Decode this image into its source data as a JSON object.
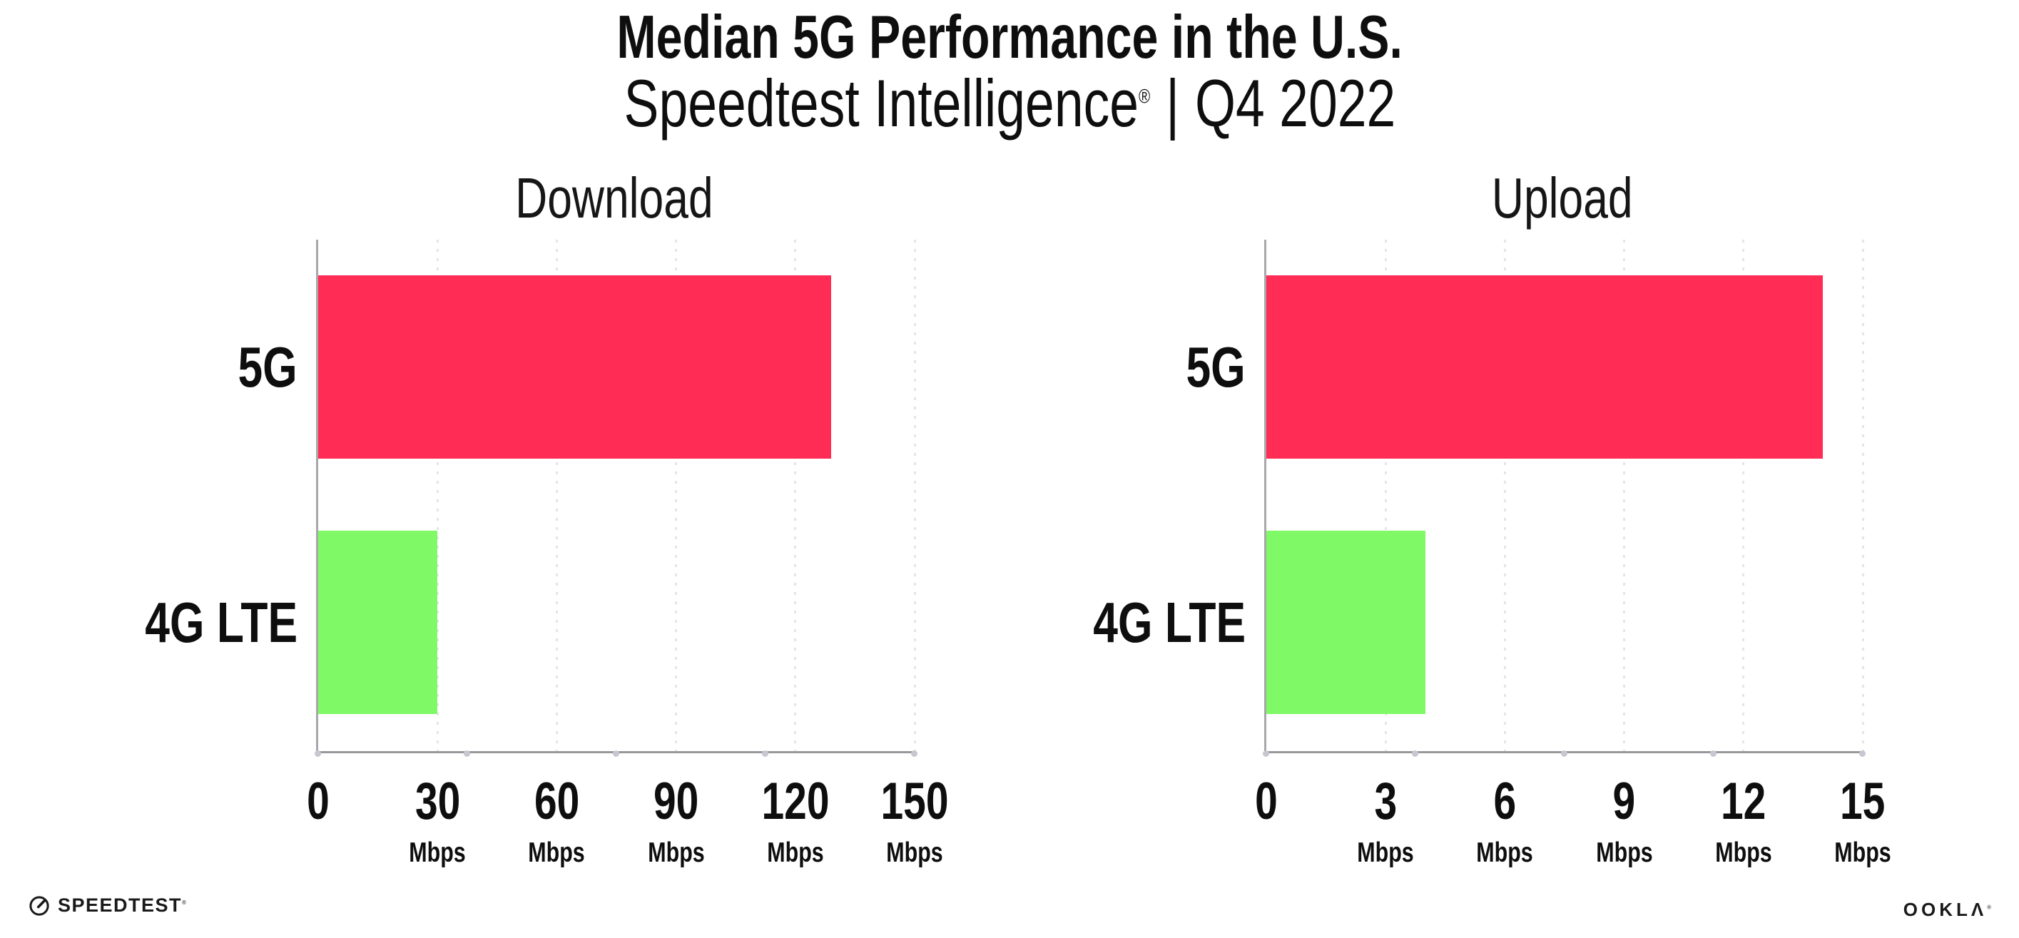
{
  "header": {
    "title": "Median 5G Performance in the U.S.",
    "subtitle_brand": "Speedtest Intelligence",
    "subtitle_reg": "®",
    "subtitle_sep": "|",
    "subtitle_period": "Q4 2022"
  },
  "footer": {
    "speedtest_logo_text": "SPEEDTEST",
    "speedtest_reg": "®",
    "ookla_logo_text": "OOKLΛ",
    "ookla_reg": "®"
  },
  "colors": {
    "bar_colors": [
      "#FF2D55",
      "#80F966"
    ],
    "axis": "#A8A8AC",
    "gridline": "#E4E4EE",
    "baseline_dot": "#C7C7D1",
    "text": "#0E0E0E"
  },
  "chart_data": [
    {
      "type": "bar",
      "orientation": "horizontal",
      "title": "Download",
      "categories": [
        "5G",
        "4G LTE"
      ],
      "values": [
        129,
        30
      ],
      "unit": "Mbps",
      "xlim": [
        0,
        150
      ],
      "xticks": [
        0,
        30,
        60,
        90,
        120,
        150
      ],
      "legend": "none",
      "grid": "vertical dotted lines at labeled ticks"
    },
    {
      "type": "bar",
      "orientation": "horizontal",
      "title": "Upload",
      "categories": [
        "5G",
        "4G LTE"
      ],
      "values": [
        14,
        4
      ],
      "unit": "Mbps",
      "xlim": [
        0,
        15
      ],
      "xticks": [
        0,
        3,
        6,
        9,
        12,
        15
      ],
      "legend": "none",
      "grid": "vertical dotted lines at labeled ticks"
    }
  ]
}
